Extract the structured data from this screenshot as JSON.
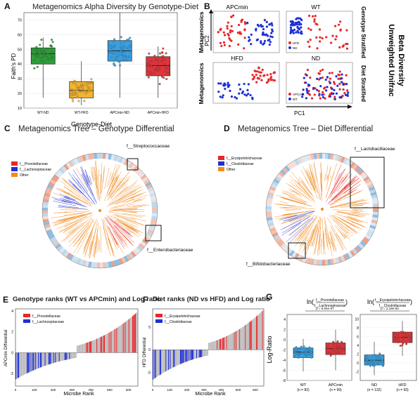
{
  "panels": {
    "a": {
      "letter": "A",
      "title": "Metagenomics Alpha Diversity by Genotype-Diet",
      "ylabel": "Faith's PD",
      "xlabel": "Genotype-Diet"
    },
    "b": {
      "letter": "B",
      "titles": [
        "APCmin",
        "WT",
        "HFD",
        "ND"
      ],
      "ylabel": "Metagenomics",
      "pc2": "PC2",
      "pc1": "PC1",
      "side1": "Genotype Stratified",
      "side2": "Diet Stratified",
      "side_title1": "Beta Diversity",
      "side_title2": "Unweighted Unifrac",
      "legend_wt": [
        "HFD",
        "ND"
      ],
      "legend_nd": [
        "APCmin",
        "WT"
      ]
    },
    "c": {
      "letter": "C",
      "title": "Metagenomics Tree – Genotype Differential",
      "legend": [
        "f__Prevotellaceae",
        "f__Lachnospiraceae",
        "Other"
      ],
      "callouts": [
        "f__Streptococcaceae",
        "f__Enterobacteriaceae"
      ]
    },
    "d": {
      "letter": "D",
      "title": "Metagenomics Tree – Diet Differential",
      "legend": [
        "f__Erysipelotrichaceae",
        "f__Clostridiaceae",
        "Other"
      ],
      "callouts": [
        "f__Lactobacillaceae",
        "f__Bifidobacteriaceae"
      ]
    },
    "e": {
      "letter": "E",
      "title": "Genotype ranks (WT vs APCmin) and Log ratio",
      "ylabel": "APCmin Differential",
      "xlabel": "Microbe Rank",
      "legend": [
        "f__Prevotellaceae",
        "f__Lachnospiraceae"
      ]
    },
    "f": {
      "letter": "F",
      "title": "Diet ranks (ND vs HFD) and Log ratio",
      "ylabel": "HFD Differential",
      "xlabel": "Microbe Rank",
      "legend": [
        "f__Erysipelotrichaceae",
        "f__Clostridiaceae"
      ]
    },
    "g": {
      "letter": "G",
      "ylabel": "Log-Ratio",
      "ratio1": {
        "num": "f__Prevotellaceae",
        "den": "f__Lachnospiraceae",
        "p": "p = 6.04e-07"
      },
      "ratio2": {
        "num": "f__Erysipelotrichaceae",
        "den": "f__Clostridiaceae",
        "p": "p = 2.19e-63"
      }
    }
  },
  "colors": {
    "red": "#e8262b",
    "blue": "#1f2fd6",
    "orange": "#f28a1e",
    "green": "#2e9e3a",
    "gold": "#f2b431",
    "sky": "#3aa0e0",
    "crimson": "#e0353b"
  },
  "chart_data": [
    {
      "type": "box",
      "panel": "A",
      "title": "Metagenomics Alpha Diversity by Genotype-Diet",
      "xlabel": "Genotype-Diet",
      "ylabel": "Faith's PD",
      "ylim": [
        10,
        75
      ],
      "yticks": [
        10,
        20,
        30,
        40,
        50,
        60,
        70
      ],
      "categories": [
        "WT-ND",
        "WT-HFD",
        "APCmin-ND",
        "APCmin-HFD"
      ],
      "series": [
        {
          "q1": 40,
          "median": 47,
          "q3": 51,
          "whisker_low": 17,
          "whisker_high": 58
        },
        {
          "q1": 17,
          "median": 22,
          "q3": 28,
          "whisker_low": 12,
          "whisker_high": 42
        },
        {
          "q1": 42,
          "median": 49,
          "q3": 56,
          "whisker_low": 17,
          "whisker_high": 75
        },
        {
          "q1": 32,
          "median": 39,
          "q3": 45,
          "whisker_low": 17,
          "whisker_high": 52
        }
      ]
    },
    {
      "type": "bar",
      "panel": "E",
      "title": "Genotype ranks (WT vs APCmin) and Log ratio",
      "xlabel": "Microbe Rank",
      "ylabel": "APCmin Differential",
      "ylim": [
        -3.2,
        4.2
      ],
      "yticks": [
        -2,
        0,
        2,
        4
      ],
      "xticks": [
        0,
        100,
        200,
        300,
        400,
        500,
        600
      ],
      "xlim": [
        0,
        650
      ]
    },
    {
      "type": "bar",
      "panel": "F",
      "title": "Diet ranks (ND vs HFD) and Log ratio",
      "xlabel": "Microbe Rank",
      "ylabel": "HFD Differential",
      "ylim": [
        -8,
        9
      ],
      "yticks": [
        -5,
        0,
        5
      ],
      "xticks": [
        0,
        100,
        200,
        300,
        400,
        500,
        600
      ],
      "xlim": [
        0,
        650
      ]
    },
    {
      "type": "box",
      "panel": "G",
      "ylabel": "Log-Ratio",
      "groups": [
        {
          "ylim": [
            -8,
            5
          ],
          "yticks": [
            -8,
            -6,
            -4,
            -2,
            0,
            2,
            4
          ],
          "categories": [
            "WT",
            "APCmin"
          ],
          "counts": [
            "(n = 82)",
            "(n = 99)"
          ],
          "series": [
            {
              "q1": -3.5,
              "median": -2.4,
              "q3": -1.6,
              "whisker_low": -6.2,
              "whisker_high": 0.2
            },
            {
              "q1": -2.9,
              "median": -1.7,
              "q3": -0.6,
              "whisker_low": -6.0,
              "whisker_high": 2.0
            }
          ]
        },
        {
          "ylim": [
            -4,
            11
          ],
          "yticks": [
            -2,
            0,
            2,
            4,
            6,
            8,
            10
          ],
          "categories": [
            "ND",
            "HFD"
          ],
          "counts": [
            "(n = 132)",
            "(n = 59)"
          ],
          "series": [
            {
              "q1": -0.5,
              "median": 0.6,
              "q3": 1.8,
              "whisker_low": -2.8,
              "whisker_high": 4.8
            },
            {
              "q1": 4.6,
              "median": 5.8,
              "q3": 7.0,
              "whisker_low": 1.6,
              "whisker_high": 9.5
            }
          ]
        }
      ]
    }
  ]
}
